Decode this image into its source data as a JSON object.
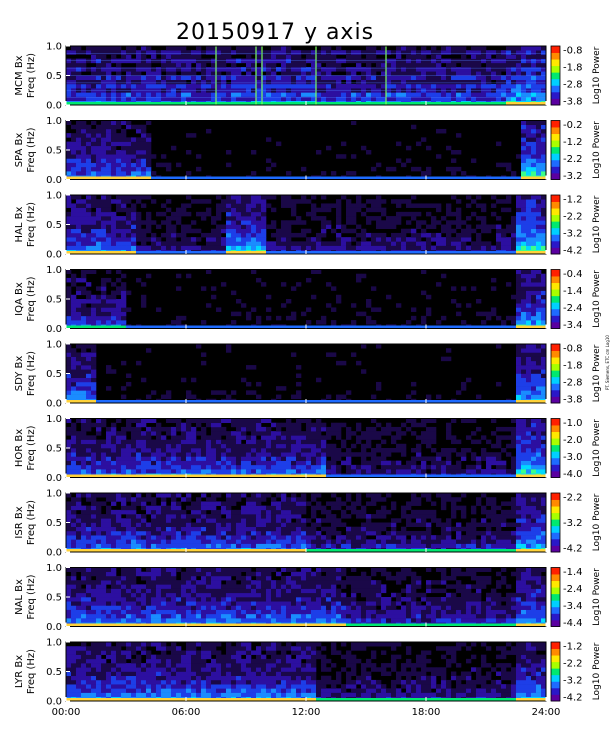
{
  "title": "20150917 y axis",
  "side_note": "PT. Siemens, ETC cm Log10",
  "colors": {
    "background": "#000000",
    "low": "#2a0a7a",
    "mid": "#1f6fff",
    "high": "#00e0ff",
    "line_green": "#7cff5c",
    "line_yellow": "#ffd23a"
  },
  "chart_data": {
    "type": "heatmap",
    "x_tick_labels": [
      "00:00",
      "06:00",
      "12:00",
      "18:00",
      "24:00"
    ],
    "x_ticks_hours": [
      0,
      6,
      12,
      18,
      24
    ],
    "xlim": [
      0,
      24
    ],
    "ylim": [
      0,
      1.0
    ],
    "y_tick_labels": [
      "0.0",
      "0.5",
      "1.0"
    ],
    "colorbar_palette": [
      "#5a00a0",
      "#2a18c8",
      "#1e6bff",
      "#00d0ff",
      "#00e870",
      "#a8ff00",
      "#ffe800",
      "#ff8a00",
      "#ff2000"
    ],
    "panels": [
      {
        "station": "MCM",
        "ylabel_line1": "MCM Bx",
        "ylabel_line2": "Freq (Hz)",
        "colorbar_label": "Log10 Power",
        "colorbar_ticks": [
          "-0.8",
          "-1.8",
          "-2.8",
          "-3.8"
        ],
        "base": 0.45,
        "activity": [
          {
            "from": 22.0,
            "to": 24.0,
            "level": 0.7
          }
        ],
        "bands": [
          {
            "from": 8.3,
            "to": 12.5,
            "level": 0.5
          }
        ],
        "hlines": true
      },
      {
        "station": "SPA",
        "ylabel_line1": "SPA Bx",
        "ylabel_line2": "Freq (Hz)",
        "colorbar_label": "Log10 Power",
        "colorbar_ticks": [
          "-0.2",
          "-1.2",
          "-2.2",
          "-3.2"
        ],
        "base": 0.05,
        "activity": [
          {
            "from": 0.0,
            "to": 4.2,
            "level": 0.55
          },
          {
            "from": 22.8,
            "to": 24.0,
            "level": 0.85
          }
        ],
        "bands": [],
        "hlines": false
      },
      {
        "station": "HAL",
        "ylabel_line1": "HAL Bx",
        "ylabel_line2": "Freq (Hz)",
        "colorbar_label": "Log10 Power",
        "colorbar_ticks": [
          "-1.2",
          "-2.2",
          "-3.2",
          "-4.2"
        ],
        "base": 0.3,
        "activity": [
          {
            "from": 0.0,
            "to": 3.5,
            "level": 0.6
          },
          {
            "from": 8.0,
            "to": 10.0,
            "level": 0.75
          },
          {
            "from": 22.5,
            "to": 24.0,
            "level": 0.9
          }
        ],
        "bands": [],
        "hlines": false
      },
      {
        "station": "IQA",
        "ylabel_line1": "IQA Bx",
        "ylabel_line2": "Freq (Hz)",
        "colorbar_label": "Log10 Power",
        "colorbar_ticks": [
          "-0.4",
          "-1.4",
          "-2.4",
          "-3.4"
        ],
        "base": 0.08,
        "activity": [
          {
            "from": 0.0,
            "to": 3.0,
            "level": 0.45
          },
          {
            "from": 22.5,
            "to": 24.0,
            "level": 0.7
          }
        ],
        "bands": [],
        "hlines": false
      },
      {
        "station": "SDY",
        "ylabel_line1": "SDY Bx",
        "ylabel_line2": "Freq (Hz)",
        "colorbar_label": "Log10 Power",
        "colorbar_ticks": [
          "-0.8",
          "-1.8",
          "-2.8",
          "-3.8"
        ],
        "base": 0.05,
        "activity": [
          {
            "from": 0.0,
            "to": 1.5,
            "level": 0.6
          },
          {
            "from": 22.5,
            "to": 24.0,
            "level": 0.7
          }
        ],
        "bands": [],
        "hlines": false
      },
      {
        "station": "HOR",
        "ylabel_line1": "HOR Bx",
        "ylabel_line2": "Freq (Hz)",
        "colorbar_label": "Log10 Power",
        "colorbar_ticks": [
          "-1.0",
          "-2.0",
          "-3.0",
          "-4.0"
        ],
        "base": 0.28,
        "activity": [
          {
            "from": 0.0,
            "to": 13.0,
            "level": 0.55
          },
          {
            "from": 22.5,
            "to": 24.0,
            "level": 0.8
          }
        ],
        "bands": [],
        "hlines": false
      },
      {
        "station": "ISR",
        "ylabel_line1": "ISR Bx",
        "ylabel_line2": "Freq (Hz)",
        "colorbar_label": "Log10 Power",
        "colorbar_ticks": [
          "-2.2",
          "-3.2",
          "-4.2"
        ],
        "base": 0.35,
        "activity": [
          {
            "from": 0.0,
            "to": 12.0,
            "level": 0.55
          },
          {
            "from": 22.5,
            "to": 24.0,
            "level": 0.7
          }
        ],
        "bands": [],
        "hlines": false
      },
      {
        "station": "NAL",
        "ylabel_line1": "NAL Bx",
        "ylabel_line2": "Freq (Hz)",
        "colorbar_label": "Log10 Power",
        "colorbar_ticks": [
          "-1.4",
          "-2.4",
          "-3.4",
          "-4.4"
        ],
        "base": 0.4,
        "activity": [
          {
            "from": 0.0,
            "to": 14.0,
            "level": 0.6
          },
          {
            "from": 22.5,
            "to": 24.0,
            "level": 0.7
          }
        ],
        "bands": [],
        "hlines": false
      },
      {
        "station": "LYR",
        "ylabel_line1": "LYR Bx",
        "ylabel_line2": "Freq (Hz)",
        "colorbar_label": "Log10 Power",
        "colorbar_ticks": [
          "-1.2",
          "-2.2",
          "-3.2",
          "-4.2"
        ],
        "base": 0.32,
        "activity": [
          {
            "from": 0.0,
            "to": 12.5,
            "level": 0.6
          },
          {
            "from": 22.5,
            "to": 24.0,
            "level": 0.65
          }
        ],
        "bands": [],
        "hlines": false
      }
    ]
  }
}
